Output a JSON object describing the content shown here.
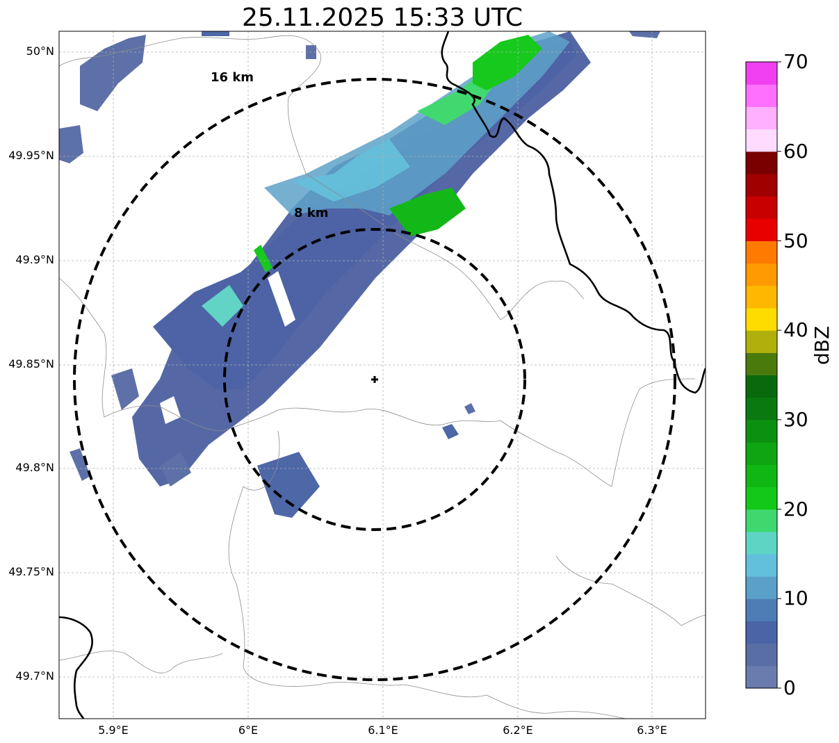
{
  "title": "25.11.2025 15:33 UTC",
  "map": {
    "lon_range": [
      5.86,
      6.34
    ],
    "lat_range": [
      49.68,
      50.01
    ],
    "radar_site": {
      "lon": 6.095,
      "lat": 49.843,
      "marker": "plus-icon"
    },
    "range_rings": [
      {
        "label": "8 km",
        "radius_km": 8
      },
      {
        "label": "16 km",
        "radius_km": 16
      }
    ],
    "x_ticks": [
      "5.9°E",
      "6°E",
      "6.1°E",
      "6.2°E",
      "6.3°E"
    ],
    "y_ticks": [
      "50°N",
      "49.95°N",
      "49.9°N",
      "49.85°N",
      "49.8°N",
      "49.75°N",
      "49.7°N"
    ],
    "grid": true
  },
  "colorbar": {
    "label": "dBZ",
    "ticks": [
      "0",
      "10",
      "20",
      "30",
      "40",
      "50",
      "60",
      "70"
    ],
    "colors": [
      "#6a7cae",
      "#5a6ea6",
      "#4a64a6",
      "#4e7cb4",
      "#5aa0c8",
      "#62c0dc",
      "#5ed4c4",
      "#3ed86e",
      "#12c818",
      "#10b614",
      "#0ea412",
      "#0c9010",
      "#0a7a10",
      "#086a0c",
      "#4a7a0c",
      "#b0b00c",
      "#ffdc00",
      "#ffb800",
      "#ff9a00",
      "#ff7a00",
      "#e80000",
      "#c80000",
      "#a00000",
      "#7a0000",
      "#ffdcff",
      "#ffb0ff",
      "#ff70ff",
      "#f040f0"
    ]
  }
}
